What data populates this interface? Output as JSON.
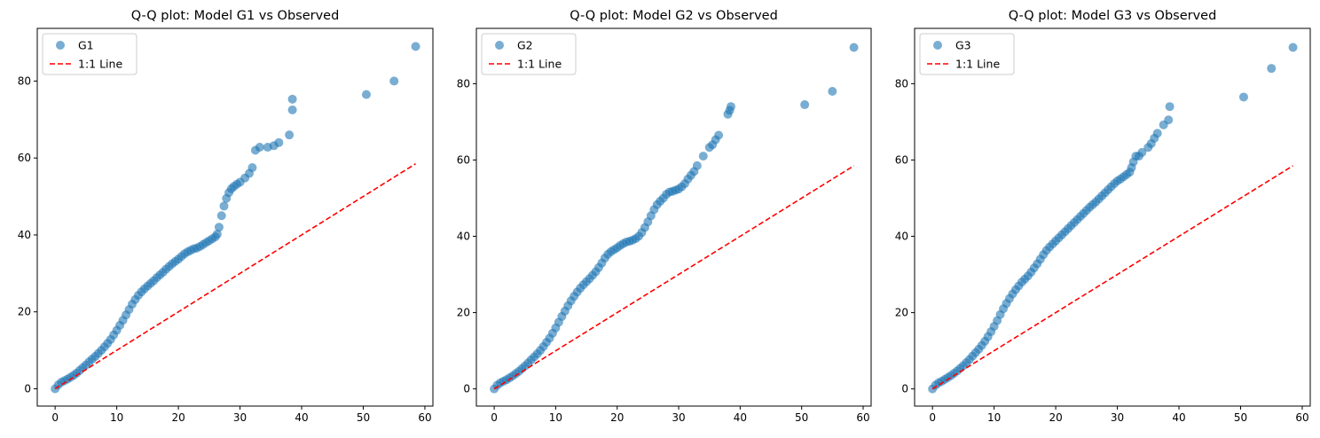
{
  "colors": {
    "scatter": "#1f77b4",
    "ref_line": "#ff0000",
    "axes": "#000000",
    "legend_border": "#cccccc"
  },
  "chart_data": [
    {
      "type": "scatter",
      "title": "Q-Q plot: Model G1 vs Observed",
      "xlabel": "",
      "ylabel": "",
      "xlim": [
        -2.9,
        61.3
      ],
      "ylim": [
        -4.5,
        93.7
      ],
      "xticks": [
        0,
        10,
        20,
        30,
        40,
        50,
        60
      ],
      "xtick_labels": [
        "0",
        "10",
        "20",
        "30",
        "40",
        "50",
        "60"
      ],
      "yticks": [
        0,
        20,
        40,
        60,
        80
      ],
      "ytick_labels": [
        "0",
        "20",
        "40",
        "60",
        "80"
      ],
      "grid": false,
      "legend": "top-left",
      "series": [
        {
          "name": "G1",
          "kind": "points",
          "marker": "circle",
          "alpha": 0.6,
          "x": [
            0,
            0.5,
            1,
            1.5,
            2,
            2.5,
            3,
            3.5,
            4,
            4.5,
            5,
            5.5,
            6,
            6.5,
            7,
            7.5,
            8,
            8.5,
            9,
            9.5,
            10,
            10.5,
            11,
            11.5,
            12,
            12.5,
            13,
            13.5,
            14,
            14.5,
            15,
            15.5,
            16,
            16.5,
            17,
            17.5,
            18,
            18.5,
            19,
            19.5,
            20,
            20.5,
            21,
            21.5,
            22,
            22.5,
            23,
            23.5,
            24,
            24.5,
            25,
            25.5,
            26,
            26.3,
            26.6,
            27,
            27.4,
            27.8,
            28.2,
            28.6,
            29,
            29.5,
            30,
            30.8,
            31.5,
            32,
            32.5,
            33.2,
            34.5,
            35.5,
            36.3,
            38,
            38.5,
            38.5,
            50.5,
            55,
            58.5
          ],
          "y": [
            0,
            1,
            1.7,
            2.1,
            2.5,
            3,
            3.5,
            4.1,
            4.8,
            5.5,
            6.2,
            7,
            7.7,
            8.4,
            9.2,
            10,
            10.9,
            11.8,
            12.8,
            14,
            15.2,
            16.5,
            17.8,
            19.2,
            20.6,
            22,
            23.2,
            24.3,
            25.2,
            26,
            26.7,
            27.4,
            28.1,
            28.9,
            29.6,
            30.3,
            31.1,
            31.8,
            32.5,
            33.1,
            33.7,
            34.4,
            35.1,
            35.6,
            36,
            36.4,
            36.6,
            37,
            37.5,
            38,
            38.5,
            39,
            39.5,
            40.2,
            42,
            45,
            47.5,
            49.5,
            51,
            52,
            52.6,
            53.2,
            53.7,
            54.8,
            56,
            57.5,
            62,
            62.8,
            62.8,
            63.2,
            64,
            66,
            72.5,
            75.3,
            76.5,
            80,
            89
          ]
        },
        {
          "name": "1:1 Line",
          "kind": "line",
          "dash": "dashed",
          "x": [
            0,
            58.5
          ],
          "y": [
            0,
            58.5
          ]
        }
      ]
    },
    {
      "type": "scatter",
      "title": "Q-Q plot: Model G2 vs Observed",
      "xlabel": "",
      "ylabel": "",
      "xlim": [
        -2.9,
        61.3
      ],
      "ylim": [
        -4.5,
        94.5
      ],
      "xticks": [
        0,
        10,
        20,
        30,
        40,
        50,
        60
      ],
      "xtick_labels": [
        "0",
        "10",
        "20",
        "30",
        "40",
        "50",
        "60"
      ],
      "yticks": [
        0,
        20,
        40,
        60,
        80
      ],
      "ytick_labels": [
        "0",
        "20",
        "40",
        "60",
        "80"
      ],
      "grid": false,
      "legend": "top-left",
      "series": [
        {
          "name": "G2",
          "kind": "points",
          "marker": "circle",
          "alpha": 0.6,
          "x": [
            0,
            0.5,
            1,
            1.5,
            2,
            2.5,
            3,
            3.5,
            4,
            4.5,
            5,
            5.5,
            6,
            6.5,
            7,
            7.5,
            8,
            8.5,
            9,
            9.5,
            10,
            10.5,
            11,
            11.5,
            12,
            12.5,
            13,
            13.5,
            14,
            14.5,
            15,
            15.5,
            16,
            16.5,
            17,
            17.5,
            18,
            18.5,
            19,
            19.5,
            20,
            20.5,
            21,
            21.5,
            22,
            22.5,
            23,
            23.5,
            24,
            24.5,
            25,
            25.5,
            26,
            26.5,
            27,
            27.5,
            28,
            28.5,
            29,
            29.5,
            30,
            30.5,
            31,
            31.5,
            32,
            32.5,
            33,
            34,
            35,
            35.5,
            36,
            36.5,
            38,
            38.3,
            38.5,
            50.5,
            55,
            58.5
          ],
          "y": [
            0,
            1,
            1.6,
            2,
            2.4,
            2.9,
            3.4,
            4,
            4.6,
            5.3,
            6,
            6.8,
            7.6,
            8.4,
            9.2,
            10.1,
            11.1,
            12.2,
            13.3,
            14.6,
            16,
            17.5,
            19,
            20.4,
            21.8,
            23.1,
            24.3,
            25.4,
            26.4,
            27.3,
            28.1,
            28.9,
            29.8,
            30.7,
            31.8,
            33,
            34.3,
            35.3,
            36,
            36.5,
            37,
            37.6,
            38.1,
            38.5,
            38.7,
            39,
            39.4,
            40,
            41,
            42.3,
            43.8,
            45.4,
            47,
            48.3,
            49.2,
            50,
            51,
            51.6,
            51.8,
            52.1,
            52.4,
            53,
            53.8,
            55,
            56,
            57,
            58.5,
            61,
            63.3,
            64,
            65.3,
            66.5,
            72,
            73,
            74,
            74.5,
            78,
            89.5
          ]
        },
        {
          "name": "1:1 Line",
          "kind": "line",
          "dash": "dashed",
          "x": [
            0,
            58.5
          ],
          "y": [
            0,
            58.5
          ]
        }
      ]
    },
    {
      "type": "scatter",
      "title": "Q-Q plot: Model G3 vs Observed",
      "xlabel": "",
      "ylabel": "",
      "xlim": [
        -2.9,
        61.3
      ],
      "ylim": [
        -4.5,
        94.5
      ],
      "xticks": [
        0,
        10,
        20,
        30,
        40,
        50,
        60
      ],
      "xtick_labels": [
        "0",
        "10",
        "20",
        "30",
        "40",
        "50",
        "60"
      ],
      "yticks": [
        0,
        20,
        40,
        60,
        80
      ],
      "ytick_labels": [
        "0",
        "20",
        "40",
        "60",
        "80"
      ],
      "grid": false,
      "legend": "top-left",
      "series": [
        {
          "name": "G3",
          "kind": "points",
          "marker": "circle",
          "alpha": 0.6,
          "x": [
            0,
            0.5,
            1,
            1.5,
            2,
            2.5,
            3,
            3.5,
            4,
            4.5,
            5,
            5.5,
            6,
            6.5,
            7,
            7.5,
            8,
            8.5,
            9,
            9.5,
            10,
            10.5,
            11,
            11.5,
            12,
            12.5,
            13,
            13.5,
            14,
            14.5,
            15,
            15.5,
            16,
            16.5,
            17,
            17.5,
            18,
            18.5,
            19,
            19.5,
            20,
            20.5,
            21,
            21.5,
            22,
            22.5,
            23,
            23.5,
            24,
            24.5,
            25,
            25.5,
            26,
            26.5,
            27,
            27.5,
            28,
            28.5,
            29,
            29.5,
            30,
            30.5,
            31,
            31.5,
            32,
            32.3,
            32.6,
            33,
            33.5,
            34,
            35,
            35.5,
            36,
            36.5,
            37.5,
            38.3,
            38.5,
            50.5,
            55,
            58.5
          ],
          "y": [
            0,
            1,
            1.6,
            2,
            2.5,
            3,
            3.5,
            4.1,
            4.7,
            5.4,
            6.1,
            6.9,
            7.7,
            8.6,
            9.5,
            10.4,
            11.4,
            12.5,
            13.7,
            15,
            16.4,
            17.9,
            19.5,
            21,
            22.4,
            23.7,
            24.9,
            26,
            27,
            28,
            28.8,
            29.6,
            30.6,
            31.7,
            32.8,
            34,
            35.2,
            36.3,
            37.2,
            38,
            38.8,
            39.6,
            40.4,
            41.2,
            42,
            42.8,
            43.6,
            44.4,
            45.2,
            46,
            46.8,
            47.6,
            48.3,
            49,
            49.8,
            50.6,
            51.4,
            52.2,
            53,
            53.8,
            54.5,
            55,
            55.6,
            56.2,
            56.8,
            58,
            59.5,
            61,
            61,
            62,
            63.3,
            64.3,
            65.7,
            67,
            69.2,
            70.5,
            74,
            76.5,
            84,
            89.5
          ]
        },
        {
          "name": "1:1 Line",
          "kind": "line",
          "dash": "dashed",
          "x": [
            0,
            58.5
          ],
          "y": [
            0,
            58.5
          ]
        }
      ]
    }
  ]
}
